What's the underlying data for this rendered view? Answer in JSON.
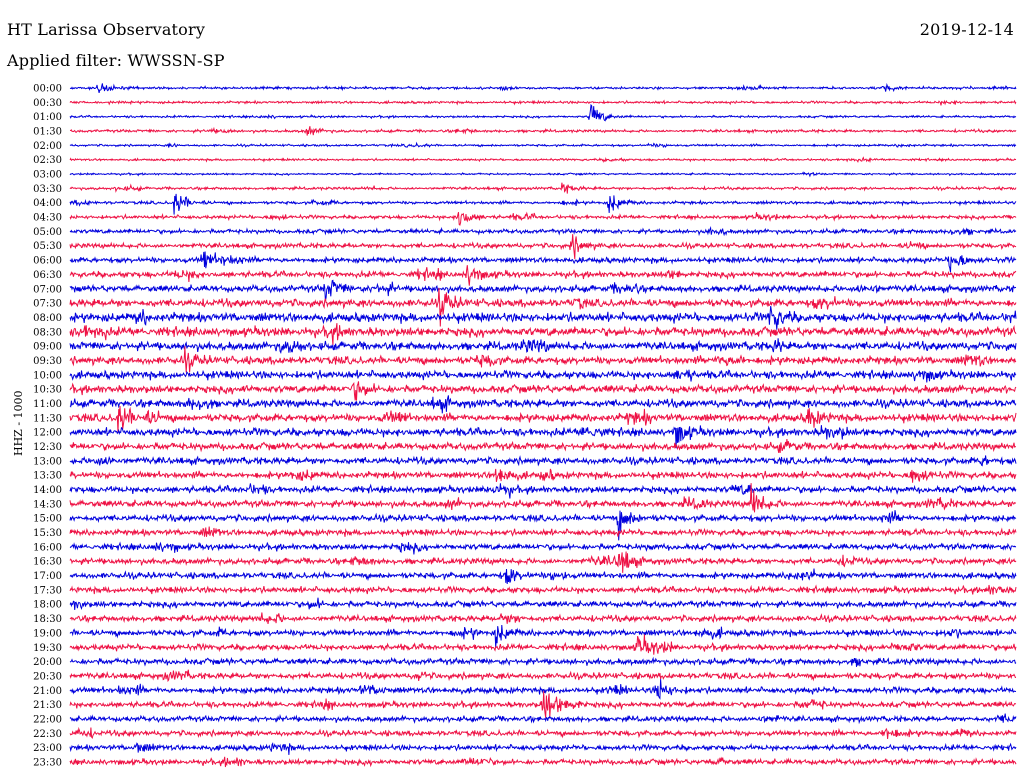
{
  "header": {
    "title": "HT Larissa Observatory",
    "filter": "Applied filter: WWSSN-SP",
    "date": "2019-12-14"
  },
  "chart_data": {
    "type": "line",
    "ylabel": "HHZ - 1000",
    "rows": [
      "00:00",
      "00:30",
      "01:00",
      "01:30",
      "02:00",
      "02:30",
      "03:00",
      "03:30",
      "04:00",
      "04:30",
      "05:00",
      "05:30",
      "06:00",
      "06:30",
      "07:00",
      "07:30",
      "08:00",
      "08:30",
      "09:00",
      "09:30",
      "10:00",
      "10:30",
      "11:00",
      "11:30",
      "12:00",
      "12:30",
      "13:00",
      "13:30",
      "14:00",
      "14:30",
      "15:00",
      "15:30",
      "16:00",
      "16:30",
      "17:00",
      "17:30",
      "18:00",
      "18:30",
      "19:00",
      "19:30",
      "20:00",
      "20:30",
      "21:00",
      "21:30",
      "22:00",
      "22:30",
      "23:00",
      "23:30"
    ],
    "colors": [
      "#0000dd",
      "#ee1144"
    ],
    "noise_level": [
      0.8,
      0.8,
      0.7,
      0.9,
      0.7,
      0.7,
      0.6,
      0.9,
      1.0,
      1.2,
      1.4,
      1.6,
      1.8,
      2.0,
      2.2,
      2.6,
      3.0,
      3.0,
      2.8,
      2.6,
      2.6,
      2.6,
      2.6,
      2.6,
      2.6,
      2.4,
      2.3,
      2.2,
      2.2,
      2.2,
      2.1,
      2.0,
      2.0,
      2.0,
      2.0,
      2.0,
      2.0,
      2.0,
      2.0,
      2.0,
      2.0,
      2.0,
      2.0,
      1.9,
      1.8,
      1.8,
      1.8,
      1.8
    ],
    "events": [
      {
        "row": "00:00",
        "t": 0.03,
        "amp": 5
      },
      {
        "row": "00:00",
        "t": 0.86,
        "amp": 3
      },
      {
        "row": "01:00",
        "t": 0.55,
        "amp": 12
      },
      {
        "row": "01:30",
        "t": 0.25,
        "amp": 4
      },
      {
        "row": "03:30",
        "t": 0.52,
        "amp": 4
      },
      {
        "row": "04:00",
        "t": 0.11,
        "amp": 11
      },
      {
        "row": "04:00",
        "t": 0.57,
        "amp": 9
      },
      {
        "row": "04:30",
        "t": 0.41,
        "amp": 10
      },
      {
        "row": "05:30",
        "t": 0.53,
        "amp": 9
      },
      {
        "row": "06:00",
        "t": 0.14,
        "amp": 10
      },
      {
        "row": "06:00",
        "t": 0.93,
        "amp": 11
      },
      {
        "row": "06:30",
        "t": 0.42,
        "amp": 10
      },
      {
        "row": "07:00",
        "t": 0.27,
        "amp": 11
      },
      {
        "row": "07:30",
        "t": 0.39,
        "amp": 13
      },
      {
        "row": "08:00",
        "t": 0.74,
        "amp": 12
      },
      {
        "row": "09:30",
        "t": 0.12,
        "amp": 8
      },
      {
        "row": "10:30",
        "t": 0.3,
        "amp": 9
      },
      {
        "row": "11:30",
        "t": 0.05,
        "amp": 14
      },
      {
        "row": "11:30",
        "t": 0.78,
        "amp": 10
      },
      {
        "row": "12:00",
        "t": 0.64,
        "amp": 11
      },
      {
        "row": "13:30",
        "t": 0.45,
        "amp": 11
      },
      {
        "row": "13:30",
        "t": 0.89,
        "amp": 9
      },
      {
        "row": "14:30",
        "t": 0.72,
        "amp": 14
      },
      {
        "row": "15:00",
        "t": 0.58,
        "amp": 13
      },
      {
        "row": "16:30",
        "t": 0.58,
        "amp": 14
      },
      {
        "row": "17:00",
        "t": 0.46,
        "amp": 9
      },
      {
        "row": "19:00",
        "t": 0.45,
        "amp": 9
      },
      {
        "row": "19:30",
        "t": 0.6,
        "amp": 10
      },
      {
        "row": "21:00",
        "t": 0.62,
        "amp": 10
      },
      {
        "row": "21:30",
        "t": 0.5,
        "amp": 16
      },
      {
        "row": "22:30",
        "t": 0.86,
        "amp": 8
      },
      {
        "row": "23:00",
        "t": 0.07,
        "amp": 5
      }
    ]
  }
}
